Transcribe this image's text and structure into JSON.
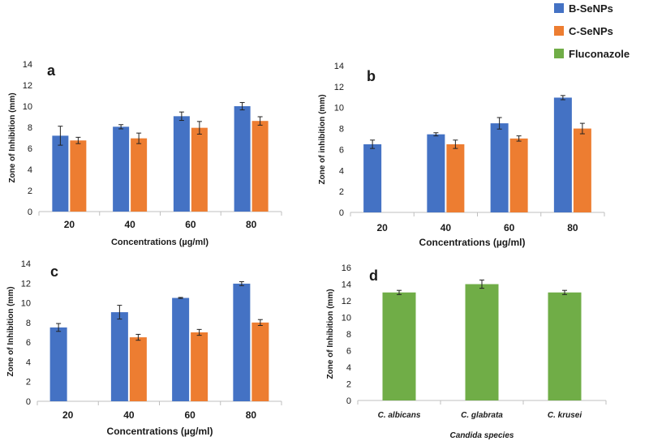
{
  "legend": [
    {
      "label": "B-SeNPs",
      "color": "#4472C4"
    },
    {
      "label": "C-SeNPs",
      "color": "#ED7D31"
    },
    {
      "label": "Fluconazole",
      "color": "#70AD47"
    }
  ],
  "chart_data": [
    {
      "panel": "a",
      "type": "bar",
      "ylabel": "Zone of Inhibition (mm)",
      "xlabel": "Concentrations (µg/ml)",
      "ylim": [
        0,
        14
      ],
      "yticks": [
        0,
        2,
        4,
        6,
        8,
        10,
        12,
        14
      ],
      "categories": [
        "20",
        "40",
        "60",
        "80"
      ],
      "series": [
        {
          "name": "B-SeNPs",
          "color": "#4472C4",
          "values": [
            7.2,
            8.05,
            9.05,
            10.0
          ],
          "errors": [
            0.9,
            0.2,
            0.4,
            0.35
          ]
        },
        {
          "name": "C-SeNPs",
          "color": "#ED7D31",
          "values": [
            6.75,
            6.95,
            7.95,
            8.6
          ],
          "errors": [
            0.3,
            0.5,
            0.6,
            0.4
          ]
        }
      ]
    },
    {
      "panel": "b",
      "type": "bar",
      "ylabel": "Zone of inhibition (mm)",
      "xlabel": "Concentrations (µg/ml)",
      "ylim": [
        0,
        14
      ],
      "yticks": [
        0,
        2,
        4,
        6,
        8,
        10,
        12,
        14
      ],
      "categories": [
        "20",
        "40",
        "60",
        "80"
      ],
      "series": [
        {
          "name": "B-SeNPs",
          "color": "#4472C4",
          "values": [
            6.5,
            7.45,
            8.5,
            10.95
          ],
          "errors": [
            0.4,
            0.15,
            0.55,
            0.2
          ]
        },
        {
          "name": "C-SeNPs",
          "color": "#ED7D31",
          "values": [
            null,
            6.5,
            7.05,
            8.0
          ],
          "errors": [
            null,
            0.4,
            0.25,
            0.5
          ]
        }
      ]
    },
    {
      "panel": "c",
      "type": "bar",
      "ylabel": "Zone of Inhibition (mm)",
      "xlabel": "Concentrations (µg/ml)",
      "ylim": [
        0,
        14
      ],
      "yticks": [
        0,
        2,
        4,
        6,
        8,
        10,
        12,
        14
      ],
      "categories": [
        "20",
        "40",
        "60",
        "80"
      ],
      "series": [
        {
          "name": "B-SeNPs",
          "color": "#4472C4",
          "values": [
            7.5,
            9.05,
            10.5,
            11.95
          ],
          "errors": [
            0.4,
            0.7,
            0.05,
            0.2
          ]
        },
        {
          "name": "C-SeNPs",
          "color": "#ED7D31",
          "values": [
            null,
            6.5,
            7.0,
            8.0
          ],
          "errors": [
            null,
            0.3,
            0.3,
            0.3
          ]
        }
      ]
    },
    {
      "panel": "d",
      "type": "bar",
      "ylabel": "Zone of Inhibition (mm)",
      "xlabel": "Candida species",
      "ylim": [
        0,
        16
      ],
      "yticks": [
        0,
        2,
        4,
        6,
        8,
        10,
        12,
        14,
        16
      ],
      "categories": [
        "C. albicans",
        "C. glabrata",
        "C. krusei"
      ],
      "series": [
        {
          "name": "Fluconazole",
          "color": "#70AD47",
          "values": [
            13.0,
            14.0,
            13.0
          ],
          "errors": [
            0.25,
            0.5,
            0.25
          ]
        }
      ]
    }
  ]
}
